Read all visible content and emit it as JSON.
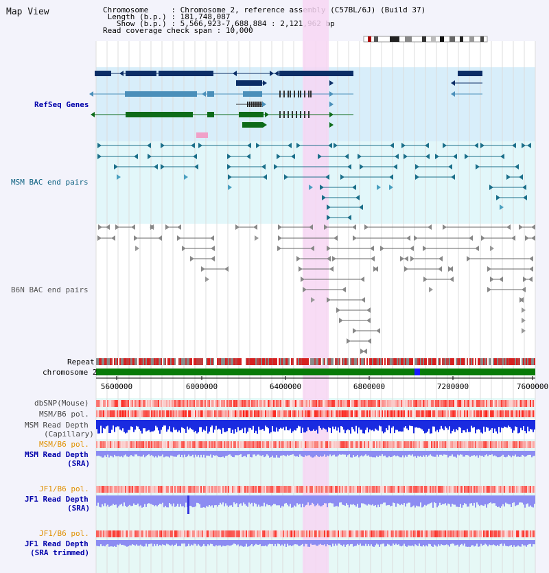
{
  "title": "Map View",
  "info": {
    "chromosome_key": "Chromosome",
    "chromosome_val": "Chromosome 2, reference assembly (C57BL/6J) (Build 37)",
    "length_key": "Length (b.p.)",
    "length_val": "181,748,087",
    "show_key": "Show (b.p.)",
    "show_val": "5,566,923-7,688,884 : 2,121,962 bp",
    "coverage_key": "Read coverage check span",
    "coverage_val": "10,000"
  },
  "tracks": {
    "refseq": {
      "label": "RefSeq Genes",
      "color": "#0000aa"
    },
    "msm_bac": {
      "label": "MSM BAC end pairs",
      "color": "#0a5f80"
    },
    "b6n_bac": {
      "label": "B6N BAC end pairs",
      "color": "#555555"
    },
    "repeat": {
      "label": "Repeat"
    },
    "chromosome": {
      "label": "chromosome 2"
    },
    "dbsnp": {
      "label": "dbSNP(Mouse)"
    },
    "msm_b6_pol": {
      "label": "MSM/B6 pol."
    },
    "msm_depth_cap": {
      "label1": "MSM Read Depth",
      "label2": "(Capillary)"
    },
    "msm_b6_pol2": {
      "label": "MSM/B6 pol."
    },
    "msm_depth_sra": {
      "label1": "MSM Read Depth",
      "label2": "(SRA)"
    },
    "jf1_b6_pol": {
      "label": "JF1/B6 pol."
    },
    "jf1_depth_sra": {
      "label1": "JF1 Read Depth",
      "label2": "(SRA)"
    },
    "jf1_b6_pol2": {
      "label": "JF1/B6 pol."
    },
    "jf1_depth_trim": {
      "label1": "JF1 Read Depth",
      "label2": "(SRA trimmed)"
    }
  },
  "axis": {
    "ticks": [
      "5600000",
      "6000000",
      "6400000",
      "6800000",
      "7200000",
      "7600000"
    ]
  },
  "colors": {
    "highlight": "#f7d6f3",
    "refseq_bg": "#d8eefa",
    "bac_bg": "#e2f7fa",
    "gene_dark": "#0b2d66",
    "gene_mid": "#4a8fba",
    "gene_green": "#0d6b18",
    "depth_blue": "#1a2be0",
    "depth_light": "#8c8cf2",
    "snp_red": "#e81b1b",
    "chrom_green": "#087a08"
  }
}
